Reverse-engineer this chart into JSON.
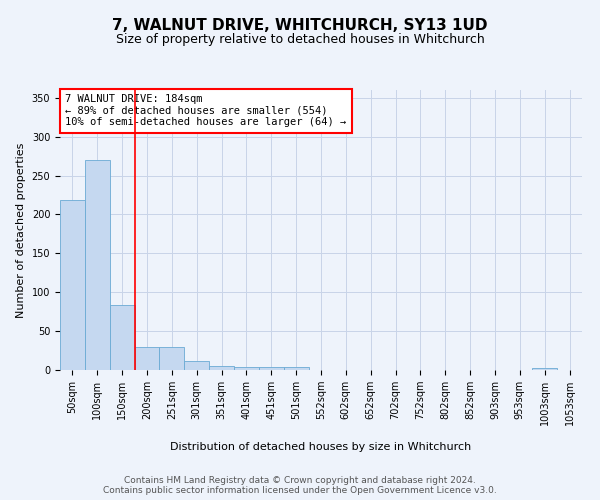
{
  "title": "7, WALNUT DRIVE, WHITCHURCH, SY13 1UD",
  "subtitle": "Size of property relative to detached houses in Whitchurch",
  "xlabel": "Distribution of detached houses by size in Whitchurch",
  "ylabel": "Number of detached properties",
  "categories": [
    "50sqm",
    "100sqm",
    "150sqm",
    "200sqm",
    "251sqm",
    "301sqm",
    "351sqm",
    "401sqm",
    "451sqm",
    "501sqm",
    "552sqm",
    "602sqm",
    "652sqm",
    "702sqm",
    "752sqm",
    "802sqm",
    "852sqm",
    "903sqm",
    "953sqm",
    "1003sqm",
    "1053sqm"
  ],
  "values": [
    218,
    270,
    84,
    29,
    29,
    12,
    5,
    4,
    4,
    4,
    0,
    0,
    0,
    0,
    0,
    0,
    0,
    0,
    0,
    3,
    0
  ],
  "bar_color": "#c5d8f0",
  "bar_edge_color": "#6aaad4",
  "background_color": "#eef3fb",
  "grid_color": "#c8d4e8",
  "red_line_x": 2.5,
  "annotation_text": "7 WALNUT DRIVE: 184sqm\n← 89% of detached houses are smaller (554)\n10% of semi-detached houses are larger (64) →",
  "annotation_box_color": "white",
  "annotation_box_edge_color": "red",
  "footer": "Contains HM Land Registry data © Crown copyright and database right 2024.\nContains public sector information licensed under the Open Government Licence v3.0.",
  "ylim": [
    0,
    360
  ],
  "title_fontsize": 11,
  "subtitle_fontsize": 9,
  "xlabel_fontsize": 8,
  "ylabel_fontsize": 8,
  "tick_fontsize": 7,
  "annotation_fontsize": 7.5,
  "footer_fontsize": 6.5
}
